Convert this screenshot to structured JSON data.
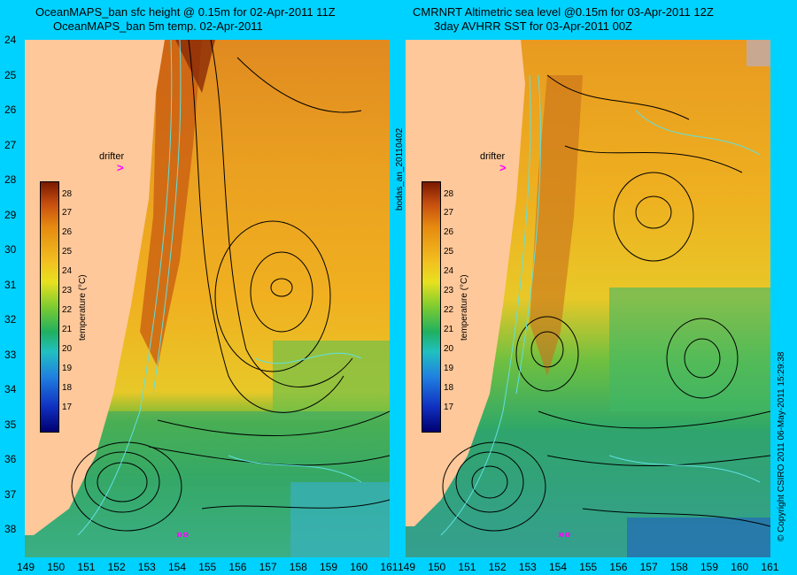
{
  "left_panel": {
    "title_line1": "OceanMAPS_ban sfc height @ 0.15m for 02-Apr-2011 11Z",
    "title_line2": "OceanMAPS_ban 5m temp. 02-Apr-2011"
  },
  "right_panel": {
    "title_line1": "CMRNRT Altimetric sea level  @0.15m  for 03-Apr-2011 12Z",
    "title_line2": "3day AVHRR SST for 03-Apr-2011 00Z"
  },
  "latitude_labels": [
    "24",
    "25",
    "26",
    "27",
    "28",
    "29",
    "30",
    "31",
    "32",
    "33",
    "34",
    "35",
    "36",
    "37",
    "38"
  ],
  "longitude_labels": [
    "149",
    "150",
    "151",
    "152",
    "153",
    "154",
    "155",
    "156",
    "157",
    "158",
    "159",
    "160",
    "161"
  ],
  "colorbar": {
    "label": "temperature (°C)",
    "ticks": [
      "28",
      "27",
      "26",
      "25",
      "24",
      "23",
      "22",
      "21",
      "20",
      "19",
      "18",
      "17"
    ]
  },
  "drifter_label": "drifter",
  "side_label": "bodas_an_20110402",
  "copyright": "© Copyright CSIRO 2011   06-May-2011 15:29:38",
  "colors": {
    "background": "#00d2ff",
    "land": "#ffc89a",
    "drifter": "#ff00ff"
  },
  "chart_data": {
    "type": "heatmap",
    "xlabel": "",
    "ylabel": "",
    "xlim": [
      149,
      161
    ],
    "ylim": [
      38.5,
      24
    ],
    "colorbar_range": [
      17,
      28
    ]
  }
}
